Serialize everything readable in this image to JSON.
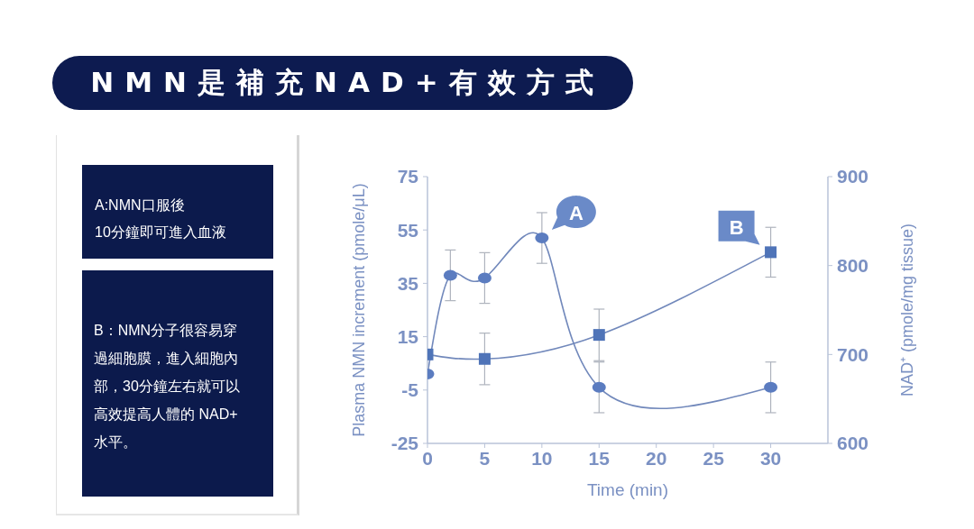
{
  "chart_data": {
    "type": "line",
    "title": "NMN是補充NAD+有效方式",
    "xlabel": "Time (min)",
    "ylabel": "Plasma NMN increment  (pmole/μL)",
    "y2label": "NAD⁺ (pmole/mg tissue)",
    "xlim": [
      0,
      35
    ],
    "xticks": [
      0,
      5,
      10,
      15,
      20,
      25,
      30
    ],
    "ylim": [
      -25,
      75
    ],
    "yticks": [
      -25,
      -5,
      15,
      35,
      55,
      75
    ],
    "y2lim": [
      600,
      900
    ],
    "y2ticks": [
      600,
      700,
      800,
      900
    ],
    "series": [
      {
        "color": "#5b7cc0",
        "marker": "circle",
        "x": [
          0,
          2,
          5,
          10,
          15,
          30
        ],
        "values": [
          1,
          38,
          37,
          52,
          -4,
          -4
        ],
        "errors": [
          null,
          9.5,
          9.5,
          9.5,
          9.5,
          9.5
        ]
      },
      {
        "color": "#4f74b8",
        "marker": "square",
        "axis": "y2",
        "x": [
          0,
          5,
          15,
          30
        ],
        "values": [
          700,
          695,
          722,
          815
        ],
        "errors": [
          null,
          29,
          29,
          28
        ]
      }
    ],
    "annotations": [
      {
        "text": "A",
        "x": 10,
        "y": 52
      },
      "B",
      "A:NMN口服後\n10分鐘即可進入血液",
      "B：NMN分子很容易穿過細胞膜，進入細胞內部，30分鐘左右就可以高效提高人體的 NAD+水平。"
    ]
  }
}
